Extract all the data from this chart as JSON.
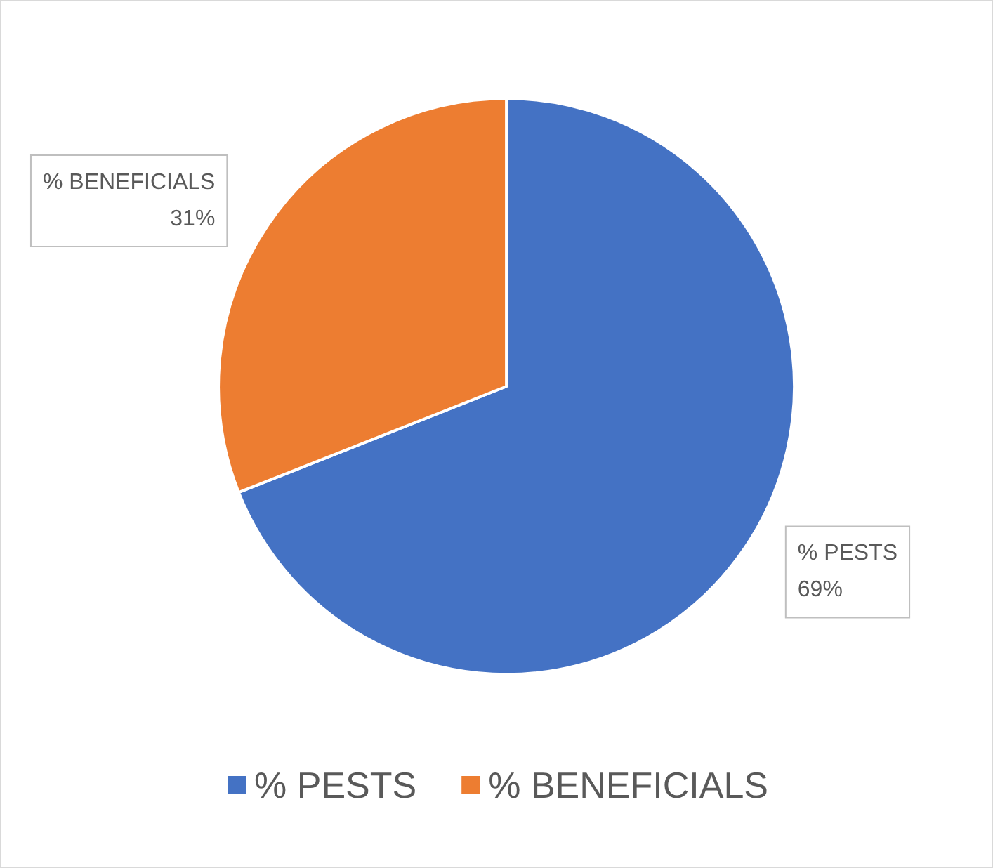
{
  "chart_data": {
    "type": "pie",
    "categories": [
      "% PESTS",
      "% BENEFICIALS"
    ],
    "values": [
      69,
      31
    ],
    "colors": [
      "#4472c4",
      "#ed7d31"
    ],
    "value_labels": [
      "69%",
      "31%"
    ],
    "legend": "bottom"
  }
}
